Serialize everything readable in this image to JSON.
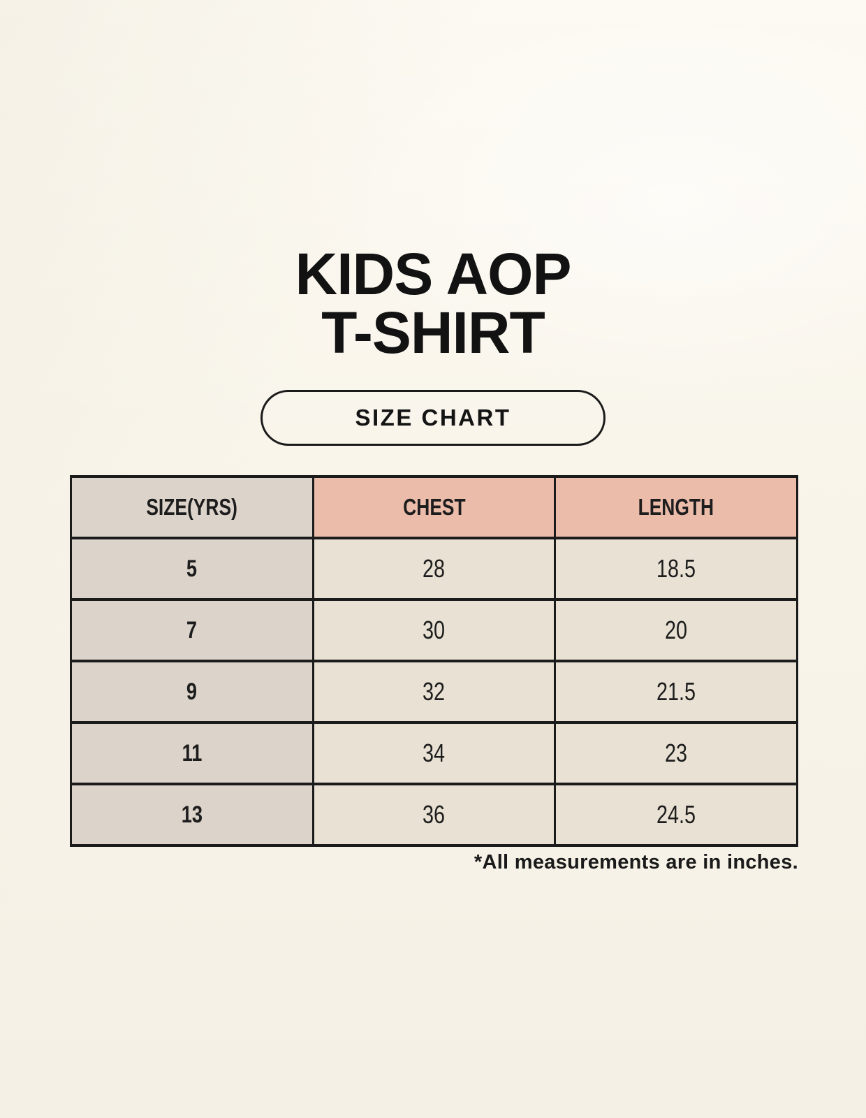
{
  "header": {
    "title_line1": "KIDS AOP",
    "title_line2": "T-SHIRT",
    "badge_label": "SIZE CHART"
  },
  "footnote": "*All measurements are in inches.",
  "colors": {
    "page_background": "#f9f5eb",
    "accent_header": "#ecbcab",
    "size_column": "#dcd4cb",
    "data_cell": "#e9e2d4",
    "table_border": "#1b1b1b",
    "text": "#161616"
  },
  "chart_data": {
    "type": "table",
    "title": "KIDS AOP T-SHIRT SIZE CHART",
    "columns": [
      "SIZE(YRS)",
      "CHEST",
      "LENGTH"
    ],
    "rows": [
      [
        "5",
        "28",
        "18.5"
      ],
      [
        "7",
        "30",
        "20"
      ],
      [
        "9",
        "32",
        "21.5"
      ],
      [
        "11",
        "34",
        "23"
      ],
      [
        "13",
        "36",
        "24.5"
      ]
    ],
    "units": "inches",
    "note": "*All measurements are in inches."
  }
}
